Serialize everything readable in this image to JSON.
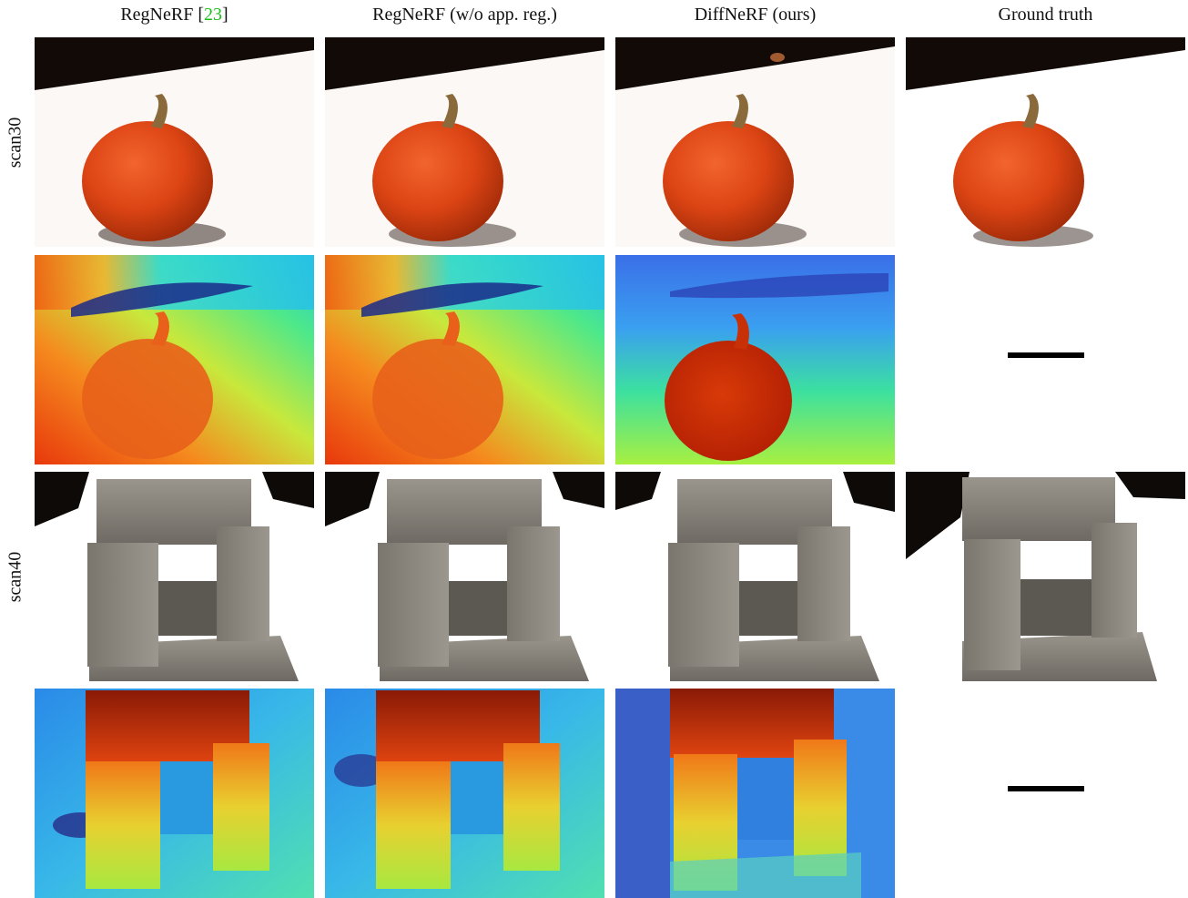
{
  "figure": {
    "columns": [
      {
        "label": "RegNeRF [",
        "cite": "23",
        "suffix": "]"
      },
      {
        "label": "RegNeRF (w/o app. reg.)",
        "cite": "",
        "suffix": ""
      },
      {
        "label": "DiffNeRF (ours)",
        "cite": "",
        "suffix": ""
      },
      {
        "label": "Ground truth",
        "cite": "",
        "suffix": ""
      }
    ],
    "rows": [
      {
        "label": "scan30"
      },
      {
        "label": "scan40"
      }
    ],
    "cite_color": "#19c119",
    "missing_marker": "dash"
  }
}
